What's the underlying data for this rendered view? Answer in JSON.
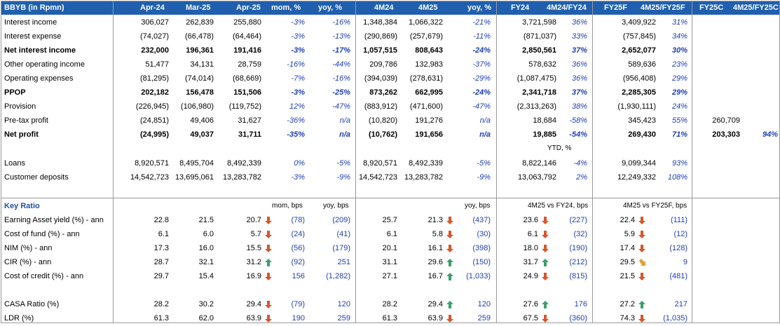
{
  "header": [
    "BBYB (in Rpmn)",
    "Apr-24",
    "Mar-25",
    "Apr-25",
    "mom, %",
    "yoy, %",
    "4M24",
    "4M25",
    "yoy, %",
    "FY24",
    "4M24/FY24",
    "FY25F",
    "4M25/FY25F",
    "FY25C",
    "4M25/FY25C"
  ],
  "income_rows": [
    {
      "label": "Interest income",
      "bold": false,
      "v": [
        "306,027",
        "262,839",
        "255,880",
        "-3%",
        "-16%",
        "1,348,384",
        "1,066,322",
        "-21%",
        "3,721,598",
        "36%",
        "3,409,922",
        "31%",
        "",
        ""
      ]
    },
    {
      "label": "Interest expense",
      "bold": false,
      "v": [
        "(74,027)",
        "(66,478)",
        "(64,464)",
        "-3%",
        "-13%",
        "(290,869)",
        "(257,679)",
        "-11%",
        "(871,037)",
        "33%",
        "(757,845)",
        "34%",
        "",
        ""
      ]
    },
    {
      "label": "Net interest income",
      "bold": true,
      "v": [
        "232,000",
        "196,361",
        "191,416",
        "-3%",
        "-17%",
        "1,057,515",
        "808,643",
        "-24%",
        "2,850,561",
        "37%",
        "2,652,077",
        "30%",
        "",
        ""
      ]
    },
    {
      "label": "Other operating income",
      "bold": false,
      "v": [
        "51,477",
        "34,131",
        "28,759",
        "-16%",
        "-44%",
        "209,786",
        "132,983",
        "-37%",
        "578,632",
        "36%",
        "589,636",
        "23%",
        "",
        ""
      ]
    },
    {
      "label": "Operating expenses",
      "bold": false,
      "v": [
        "(81,295)",
        "(74,014)",
        "(68,669)",
        "-7%",
        "-16%",
        "(394,039)",
        "(278,631)",
        "-29%",
        "(1,087,475)",
        "36%",
        "(956,408)",
        "29%",
        "",
        ""
      ]
    },
    {
      "label": "PPOP",
      "bold": true,
      "v": [
        "202,182",
        "156,478",
        "151,506",
        "-3%",
        "-25%",
        "873,262",
        "662,995",
        "-24%",
        "2,341,718",
        "37%",
        "2,285,305",
        "29%",
        "",
        ""
      ]
    },
    {
      "label": "Provision",
      "bold": false,
      "v": [
        "(226,945)",
        "(106,980)",
        "(119,752)",
        "12%",
        "-47%",
        "(883,912)",
        "(471,600)",
        "-47%",
        "(2,313,263)",
        "38%",
        "(1,930,111)",
        "24%",
        "",
        ""
      ]
    },
    {
      "label": "Pre-tax profit",
      "bold": false,
      "v": [
        "(24,851)",
        "49,406",
        "31,627",
        "-36%",
        "n/a",
        "(10,820)",
        "191,276",
        "n/a",
        "18,684",
        "-58%",
        "345,423",
        "55%",
        "260,709",
        ""
      ]
    },
    {
      "label": "Net profit",
      "bold": true,
      "v": [
        "(24,995)",
        "49,037",
        "31,711",
        "-35%",
        "n/a",
        "(10,762)",
        "191,656",
        "n/a",
        "19,885",
        "-54%",
        "269,430",
        "71%",
        "203,303",
        "94%"
      ]
    }
  ],
  "ytd_label": "YTD, %",
  "balance_rows": [
    {
      "label": "Loans",
      "v": [
        "8,920,571",
        "8,495,704",
        "8,492,339",
        "0%",
        "-5%",
        "8,920,571",
        "8,492,339",
        "-5%",
        "8,822,146",
        "-4%",
        "9,099,344",
        "93%"
      ]
    },
    {
      "label": "Customer deposits",
      "v": [
        "14,542,723",
        "13,695,061",
        "13,283,782",
        "-3%",
        "-9%",
        "14,542,723",
        "13,283,782",
        "-9%",
        "13,063,792",
        "2%",
        "12,249,332",
        "108%"
      ]
    }
  ],
  "key_ratio": {
    "title": "Key Ratio",
    "sub_headers": {
      "mom": "mom, bps",
      "yoy": "yoy, bps",
      "yoy2": "yoy, bps",
      "vs_fy24": "4M25 vs FY24, bps",
      "vs_fy25f": "4M25 vs FY25F, bps"
    },
    "rows": [
      {
        "label": "Earning Asset yield (%) - ann",
        "a": "22.8",
        "b": "21.5",
        "c": "20.7",
        "c_dir": "down",
        "mom": "(78)",
        "yoy": "(209)",
        "d": "25.7",
        "e": "21.3",
        "e_dir": "down",
        "yoy2": "(437)",
        "f": "23.6",
        "f_dir": "down",
        "vf": "(227)",
        "g": "22.4",
        "g_dir": "down",
        "vg": "(111)"
      },
      {
        "label": "Cost of fund (%) - ann",
        "a": "6.1",
        "b": "6.0",
        "c": "5.7",
        "c_dir": "down",
        "mom": "(24)",
        "yoy": "(41)",
        "d": "6.1",
        "e": "5.8",
        "e_dir": "down",
        "yoy2": "(30)",
        "f": "6.1",
        "f_dir": "down",
        "vf": "(32)",
        "g": "5.9",
        "g_dir": "down",
        "vg": "(12)"
      },
      {
        "label": "NIM (%) - ann",
        "a": "17.3",
        "b": "16.0",
        "c": "15.5",
        "c_dir": "down",
        "mom": "(56)",
        "yoy": "(179)",
        "d": "20.1",
        "e": "16.1",
        "e_dir": "down",
        "yoy2": "(398)",
        "f": "18.0",
        "f_dir": "down",
        "vf": "(190)",
        "g": "17.4",
        "g_dir": "down",
        "vg": "(128)"
      },
      {
        "label": "CIR (%) - ann",
        "a": "28.7",
        "b": "32.1",
        "c": "31.2",
        "c_dir": "up",
        "mom": "(92)",
        "yoy": "251",
        "d": "31.1",
        "e": "29.6",
        "e_dir": "up",
        "yoy2": "(150)",
        "f": "31.7",
        "f_dir": "up",
        "vf": "(212)",
        "g": "29.5",
        "g_dir": "diag",
        "vg": "9"
      },
      {
        "label": "Cost of credit (%) - ann",
        "a": "29.7",
        "b": "15.4",
        "c": "16.9",
        "c_dir": "down",
        "mom": "156",
        "yoy": "(1,282)",
        "d": "27.1",
        "e": "16.7",
        "e_dir": "up",
        "yoy2": "(1,033)",
        "f": "24.9",
        "f_dir": "down",
        "vf": "(815)",
        "g": "21.5",
        "g_dir": "down",
        "vg": "(481)"
      },
      {
        "label": "CASA Ratio (%)",
        "a": "28.2",
        "b": "30.2",
        "c": "29.4",
        "c_dir": "down",
        "mom": "(79)",
        "yoy": "120",
        "d": "28.2",
        "e": "29.4",
        "e_dir": "up",
        "yoy2": "120",
        "f": "27.6",
        "f_dir": "up",
        "vf": "176",
        "g": "27.2",
        "g_dir": "up",
        "vg": "217"
      },
      {
        "label": "LDR (%)",
        "a": "61.3",
        "b": "62.0",
        "c": "63.9",
        "c_dir": "down",
        "mom": "190",
        "yoy": "259",
        "d": "61.3",
        "e": "63.9",
        "e_dir": "down",
        "yoy2": "259",
        "f": "67.5",
        "f_dir": "down",
        "vf": "(360)",
        "g": "74.3",
        "g_dir": "down",
        "vg": "(1,035)"
      }
    ]
  },
  "colors": {
    "header_bg": "#1f5fae",
    "italic_blue": "#1f3fb4",
    "arrow_down": "#d9552b",
    "arrow_up": "#3f9e6e",
    "arrow_diag": "#e0a030"
  }
}
